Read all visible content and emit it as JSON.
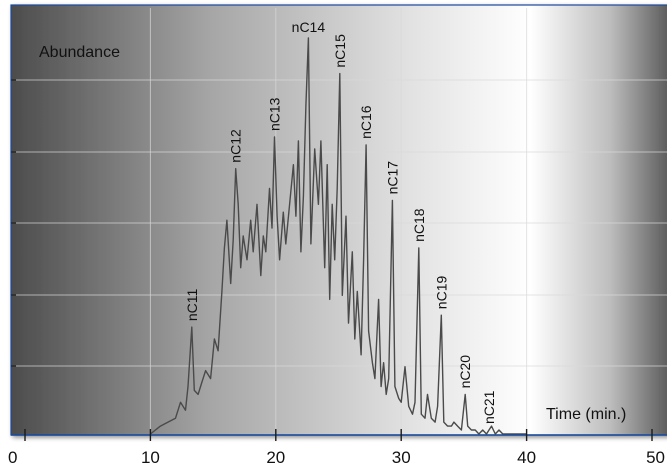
{
  "chart_data": {
    "type": "line",
    "title": "",
    "ylabel": "Abundance",
    "xlabel": "Time (min.)",
    "xlim": [
      0,
      50
    ],
    "x_ticks": [
      0,
      10,
      20,
      30,
      40,
      50
    ],
    "grid": true,
    "colors": {
      "trace": "#4a4a4a",
      "frame": "#1a4a9a",
      "text": "#111111",
      "grid": "#d8d8d8",
      "bg_dark": "#4a4a4a",
      "bg_light": "#ffffff"
    },
    "peaks": [
      {
        "label": "nC11",
        "time": 13.3,
        "rel": 0.27
      },
      {
        "label": "nC12",
        "time": 16.8,
        "rel": 0.67
      },
      {
        "label": "nC13",
        "time": 19.9,
        "rel": 0.75
      },
      {
        "label": "nC14",
        "time": 22.6,
        "rel": 1.0
      },
      {
        "label": "nC15",
        "time": 25.1,
        "rel": 0.91
      },
      {
        "label": "nC16",
        "time": 27.2,
        "rel": 0.73
      },
      {
        "label": "nC17",
        "time": 29.3,
        "rel": 0.59
      },
      {
        "label": "nC18",
        "time": 31.4,
        "rel": 0.47
      },
      {
        "label": "nC19",
        "time": 33.2,
        "rel": 0.3
      },
      {
        "label": "nC20",
        "time": 35.1,
        "rel": 0.1
      },
      {
        "label": "nC21",
        "time": 37.0,
        "rel": 0.01
      }
    ],
    "series": [
      {
        "x": [
          10.0,
          10.8,
          11.4,
          12.0,
          12.4,
          12.8,
          13.0,
          13.3,
          13.5,
          13.8,
          14.1,
          14.4,
          14.8,
          15.1,
          15.4,
          15.7,
          15.9,
          16.1,
          16.4,
          16.6,
          16.8,
          17.0,
          17.2,
          17.4,
          17.7,
          18.0,
          18.2,
          18.5,
          18.8,
          19.0,
          19.2,
          19.5,
          19.7,
          19.9,
          20.1,
          20.3,
          20.6,
          20.8,
          21.1,
          21.4,
          21.6,
          21.8,
          22.0,
          22.2,
          22.4,
          22.6,
          22.8,
          23.1,
          23.4,
          23.6,
          23.9,
          24.1,
          24.3,
          24.5,
          24.7,
          24.9,
          25.1,
          25.3,
          25.6,
          25.8,
          26.1,
          26.3,
          26.5,
          26.8,
          27.0,
          27.2,
          27.4,
          27.7,
          27.9,
          28.2,
          28.4,
          28.6,
          28.8,
          29.0,
          29.3,
          29.5,
          29.8,
          30.0,
          30.3,
          30.6,
          30.9,
          31.1,
          31.4,
          31.6,
          31.9,
          32.1,
          32.4,
          32.7,
          32.9,
          33.2,
          33.4,
          33.7,
          34.0,
          34.2,
          34.5,
          34.8,
          35.1,
          35.3,
          35.6,
          35.9,
          36.2,
          36.5,
          36.8,
          37.0,
          37.2,
          37.5,
          37.8,
          38.1,
          38.4,
          38.7,
          39.0
        ],
        "y": [
          0.0,
          0.02,
          0.03,
          0.04,
          0.08,
          0.06,
          0.12,
          0.27,
          0.11,
          0.1,
          0.13,
          0.16,
          0.14,
          0.24,
          0.21,
          0.36,
          0.47,
          0.54,
          0.38,
          0.49,
          0.67,
          0.58,
          0.42,
          0.5,
          0.44,
          0.54,
          0.46,
          0.58,
          0.4,
          0.5,
          0.46,
          0.62,
          0.52,
          0.75,
          0.55,
          0.44,
          0.56,
          0.48,
          0.58,
          0.68,
          0.55,
          0.74,
          0.46,
          0.6,
          0.83,
          1.0,
          0.48,
          0.72,
          0.58,
          0.74,
          0.42,
          0.68,
          0.34,
          0.58,
          0.44,
          0.62,
          0.91,
          0.35,
          0.55,
          0.28,
          0.46,
          0.24,
          0.36,
          0.2,
          0.44,
          0.73,
          0.26,
          0.18,
          0.14,
          0.34,
          0.12,
          0.18,
          0.1,
          0.14,
          0.59,
          0.12,
          0.09,
          0.08,
          0.17,
          0.07,
          0.05,
          0.08,
          0.47,
          0.05,
          0.04,
          0.1,
          0.04,
          0.03,
          0.07,
          0.3,
          0.03,
          0.02,
          0.02,
          0.03,
          0.02,
          0.01,
          0.1,
          0.02,
          0.01,
          0.01,
          0.0,
          0.01,
          0.0,
          0.01,
          0.02,
          0.0,
          0.01,
          0.0,
          0.0,
          0.0,
          0.0
        ]
      }
    ]
  }
}
